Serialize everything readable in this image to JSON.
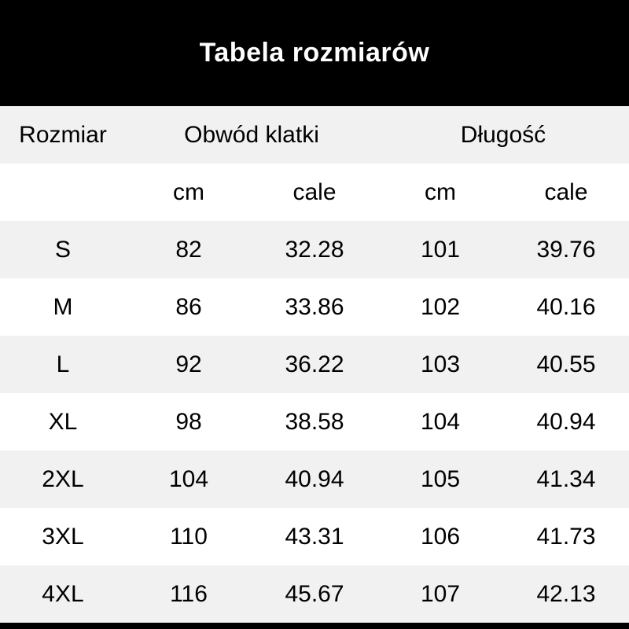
{
  "banner": {
    "title": "Tabela rozmiarów"
  },
  "table": {
    "corner_header": "Rozmiar",
    "group_headers": {
      "chest": "Obwód klatki",
      "length": "Długość"
    },
    "unit_row": {
      "chest_cm": "cm",
      "chest_cale": "cale",
      "length_cm": "cm",
      "length_cale": "cale"
    },
    "rows": [
      {
        "size": "S",
        "chest_cm": "82",
        "chest_cale": "32.28",
        "length_cm": "101",
        "length_cale": "39.76"
      },
      {
        "size": "M",
        "chest_cm": "86",
        "chest_cale": "33.86",
        "length_cm": "102",
        "length_cale": "40.16"
      },
      {
        "size": "L",
        "chest_cm": "92",
        "chest_cale": "36.22",
        "length_cm": "103",
        "length_cale": "40.55"
      },
      {
        "size": "XL",
        "chest_cm": "98",
        "chest_cale": "38.58",
        "length_cm": "104",
        "length_cale": "40.94"
      },
      {
        "size": "2XL",
        "chest_cm": "104",
        "chest_cale": "40.94",
        "length_cm": "105",
        "length_cale": "41.34"
      },
      {
        "size": "3XL",
        "chest_cm": "110",
        "chest_cale": "43.31",
        "length_cm": "106",
        "length_cale": "41.73"
      },
      {
        "size": "4XL",
        "chest_cm": "116",
        "chest_cale": "45.67",
        "length_cm": "107",
        "length_cale": "42.13"
      }
    ]
  },
  "chart_data": {
    "type": "table",
    "title": "Tabela rozmiarów",
    "columns": [
      "Rozmiar",
      "Obwód klatki cm",
      "Obwód klatki cale",
      "Długość cm",
      "Długość cale"
    ],
    "rows": [
      [
        "S",
        82,
        32.28,
        101,
        39.76
      ],
      [
        "M",
        86,
        33.86,
        102,
        40.16
      ],
      [
        "L",
        92,
        36.22,
        103,
        40.55
      ],
      [
        "XL",
        98,
        38.58,
        104,
        40.94
      ],
      [
        "2XL",
        104,
        40.94,
        105,
        41.34
      ],
      [
        "3XL",
        110,
        43.31,
        106,
        41.73
      ],
      [
        "4XL",
        116,
        45.67,
        107,
        42.13
      ]
    ],
    "layout_hints": {
      "alternating_row_colors": true,
      "first_data_row_shaded": true
    }
  },
  "colors": {
    "banner_bg": "#000000",
    "banner_text": "#ffffff",
    "row_shaded_bg": "#f1f1f1",
    "row_plain_bg": "#ffffff",
    "text": "#000000"
  }
}
